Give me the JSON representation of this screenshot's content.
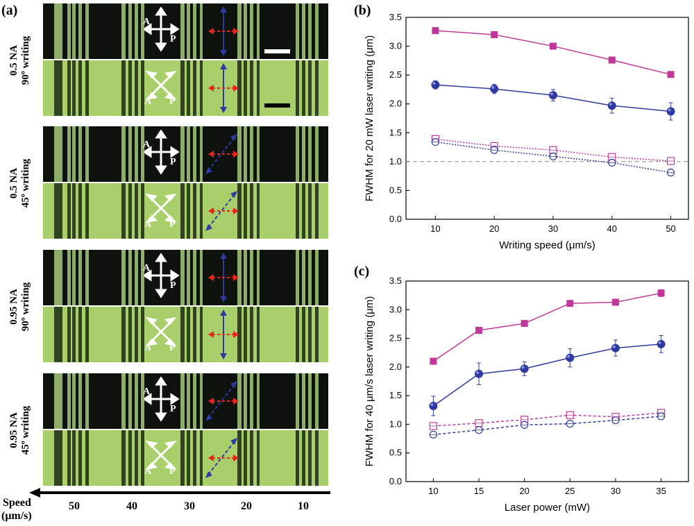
{
  "panel_labels": {
    "a": "(a)",
    "b": "(b)",
    "c": "(c)"
  },
  "rows": [
    {
      "na": "0.5 NA",
      "writing": "90º writing",
      "polarizer": "cross",
      "bottom_polarizer": "x"
    },
    {
      "na": "0.5 NA",
      "writing": "45º writing",
      "polarizer": "cross",
      "bottom_polarizer": "x"
    },
    {
      "na": "0.95 NA",
      "writing": "90º writing",
      "polarizer": "cross",
      "bottom_polarizer": "x"
    },
    {
      "na": "0.95 NA",
      "writing": "45º writing",
      "polarizer": "cross",
      "bottom_polarizer": "x"
    }
  ],
  "polarizer_labels": {
    "analyzer": "A",
    "polarizer": "P"
  },
  "speed_axis": {
    "label_line1": "Speed",
    "label_line2": "(μm/s)",
    "ticks": [
      "50",
      "40",
      "30",
      "20",
      "10"
    ]
  },
  "colors": {
    "magenta": "#c0399a",
    "blue": "#2f3aa0",
    "red_arrow": "#e8241d",
    "dark_field": "#0d120d",
    "bright_field": "#a8cf6a"
  },
  "chart_data": [
    {
      "type": "line",
      "panel": "(b)",
      "xlabel": "Writing speed (μm/s)",
      "ylabel": "FWHM for 20 mW laser writing (μm)",
      "x": [
        10,
        20,
        30,
        40,
        50
      ],
      "xlim": [
        5,
        53
      ],
      "ylim": [
        0,
        3.5
      ],
      "xticks": [
        "10",
        "20",
        "30",
        "40",
        "50"
      ],
      "yticks": [
        "0.0",
        "0.5",
        "1.0",
        "1.5",
        "2.0",
        "2.5",
        "3.0",
        "3.5"
      ],
      "reference_line": 1.0,
      "series": [
        {
          "marker": "square-filled",
          "color": "#c0399a",
          "line": "solid",
          "values": [
            3.27,
            3.2,
            3.0,
            2.76,
            2.51
          ],
          "errors": [
            0.03,
            0.05,
            0.03,
            0.03,
            0.05
          ]
        },
        {
          "marker": "circle-filled",
          "color": "#2f3aa0",
          "line": "solid",
          "values": [
            2.33,
            2.26,
            2.15,
            1.97,
            1.87
          ],
          "errors": [
            0.07,
            0.08,
            0.1,
            0.13,
            0.15
          ]
        },
        {
          "marker": "square-open",
          "color": "#c0399a",
          "line": "dotted",
          "values": [
            1.39,
            1.27,
            1.2,
            1.08,
            1.01
          ],
          "errors": [
            0.03,
            0.03,
            0.04,
            0.04,
            0.04
          ]
        },
        {
          "marker": "circle-open",
          "color": "#2f3aa0",
          "line": "dotted",
          "values": [
            1.34,
            1.2,
            1.09,
            0.98,
            0.81
          ],
          "errors": [
            0.03,
            0.03,
            0.03,
            0.03,
            0.03
          ]
        }
      ]
    },
    {
      "type": "line",
      "panel": "(c)",
      "xlabel": "Laser power (mW)",
      "ylabel": "FWHM for 40 μm/s laser writing (μm)",
      "x": [
        10,
        15,
        20,
        25,
        30,
        35
      ],
      "xlim": [
        7,
        38
      ],
      "ylim": [
        0,
        3.5
      ],
      "xticks": [
        "10",
        "15",
        "20",
        "25",
        "30",
        "35"
      ],
      "yticks": [
        "0.0",
        "0.5",
        "1.0",
        "1.5",
        "2.0",
        "2.5",
        "3.0",
        "3.5"
      ],
      "series": [
        {
          "marker": "square-filled",
          "color": "#c0399a",
          "line": "solid",
          "values": [
            2.1,
            2.64,
            2.76,
            3.11,
            3.13,
            3.29
          ],
          "errors": [
            0.03,
            0.03,
            0.03,
            0.04,
            0.03,
            0.06
          ]
        },
        {
          "marker": "circle-filled",
          "color": "#2f3aa0",
          "line": "solid",
          "values": [
            1.32,
            1.88,
            1.97,
            2.16,
            2.33,
            2.4
          ],
          "errors": [
            0.17,
            0.19,
            0.12,
            0.16,
            0.14,
            0.15
          ]
        },
        {
          "marker": "square-open",
          "color": "#c0399a",
          "line": "dashed",
          "values": [
            0.97,
            1.02,
            1.08,
            1.16,
            1.13,
            1.2
          ],
          "errors": [
            0.03,
            0.03,
            0.03,
            0.03,
            0.03,
            0.03
          ]
        },
        {
          "marker": "circle-open",
          "color": "#2f3aa0",
          "line": "dashed",
          "values": [
            0.82,
            0.9,
            0.99,
            1.01,
            1.07,
            1.14
          ],
          "errors": [
            0.03,
            0.03,
            0.03,
            0.03,
            0.03,
            0.03
          ]
        }
      ]
    }
  ]
}
